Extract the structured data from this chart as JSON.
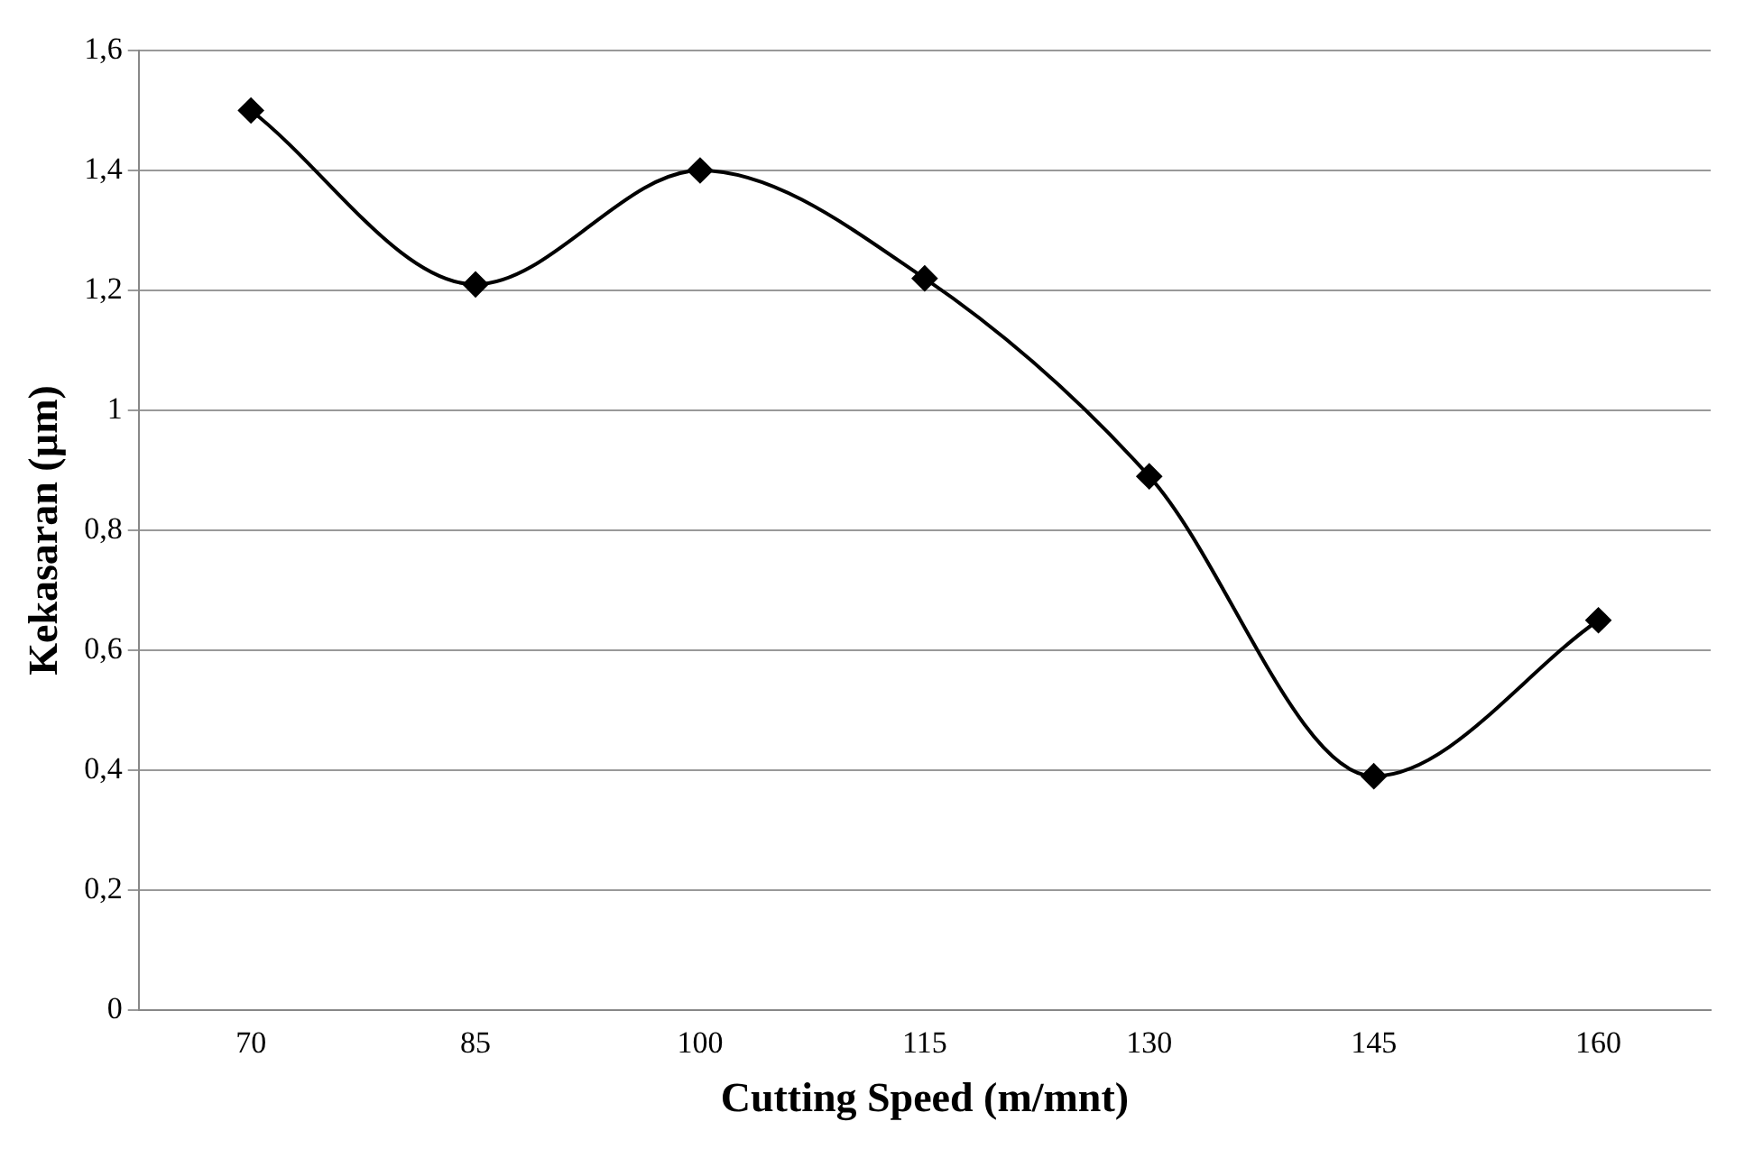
{
  "chart_data": {
    "type": "line",
    "xlabel": "Cutting Speed (m/mnt)",
    "ylabel": "Kekasaran (µm)",
    "categories": [
      "70",
      "85",
      "100",
      "115",
      "130",
      "145",
      "160"
    ],
    "series": [
      {
        "color": "#000000",
        "values": [
          1.5,
          1.21,
          1.4,
          1.22,
          0.89,
          0.39,
          0.65
        ]
      }
    ],
    "ylim": [
      0,
      1.6
    ],
    "yticks": [
      0,
      {
        "value": 0.2,
        "label": "0,2"
      },
      {
        "value": 0.4,
        "label": "0,4"
      },
      {
        "value": 0.6,
        "label": "0,6"
      },
      {
        "value": 0.8,
        "label": "0,8"
      },
      1,
      {
        "value": 1.2,
        "label": "1,2"
      },
      {
        "value": 1.4,
        "label": "1,4"
      },
      {
        "value": 1.6,
        "label": "1,6"
      }
    ],
    "grid": "y",
    "marker": "diamond",
    "line_style": "solid",
    "legend": false
  }
}
